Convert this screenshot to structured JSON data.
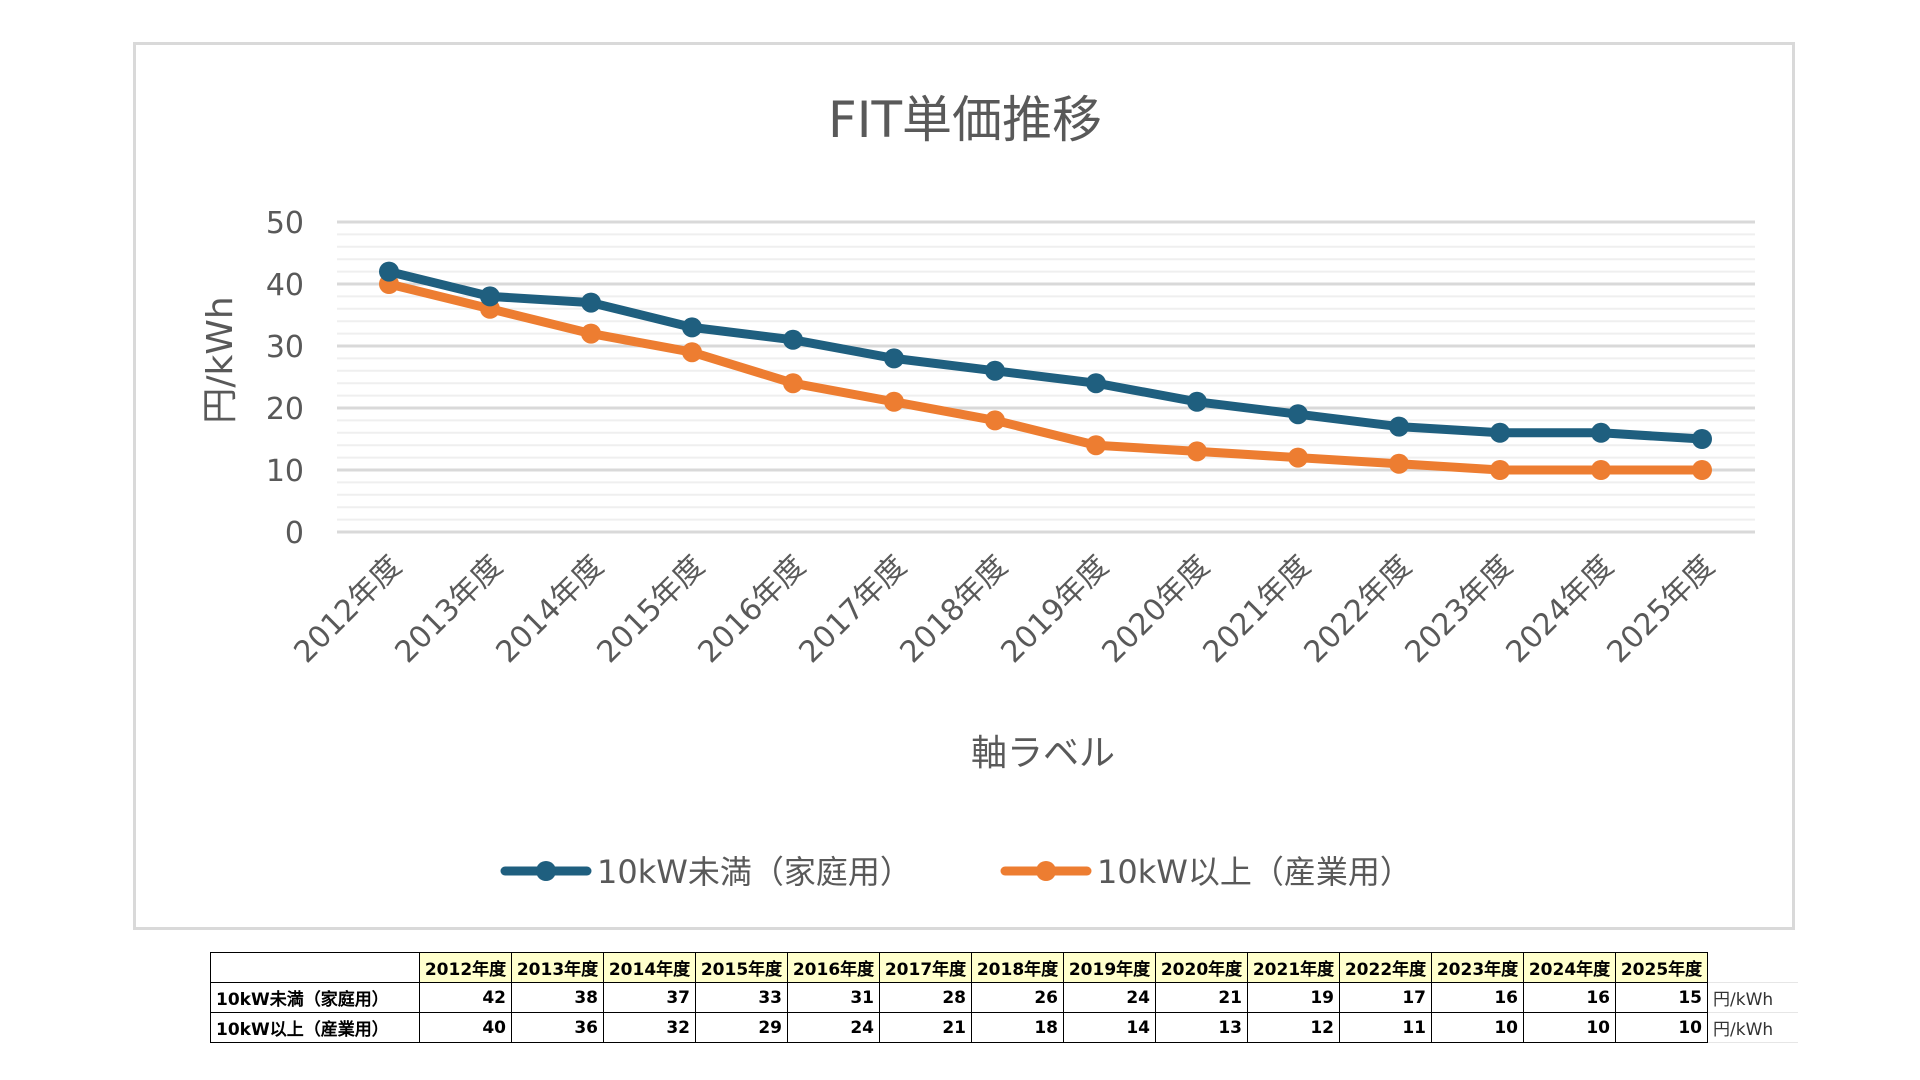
{
  "chart_data": {
    "type": "line",
    "title": "FIT単価推移",
    "xlabel": "軸ラベル",
    "ylabel": "円/kWh",
    "ylim": [
      0,
      50
    ],
    "yticks": [
      0,
      10,
      20,
      30,
      40,
      50
    ],
    "grid": true,
    "legend": "bottom",
    "categories": [
      "2012年度",
      "2013年度",
      "2014年度",
      "2015年度",
      "2016年度",
      "2017年度",
      "2018年度",
      "2019年度",
      "2020年度",
      "2021年度",
      "2022年度",
      "2023年度",
      "2024年度",
      "2025年度"
    ],
    "series": [
      {
        "name": "10kW未満（家庭用）",
        "color": "#1f5f7f",
        "values": [
          42,
          38,
          37,
          33,
          31,
          28,
          26,
          24,
          21,
          19,
          17,
          16,
          16,
          15
        ]
      },
      {
        "name": "10kW以上（産業用）",
        "color": "#ed7d31",
        "values": [
          40,
          36,
          32,
          29,
          24,
          21,
          18,
          14,
          13,
          12,
          11,
          10,
          10,
          10
        ]
      }
    ]
  },
  "table": {
    "unit": "円/kWh"
  }
}
